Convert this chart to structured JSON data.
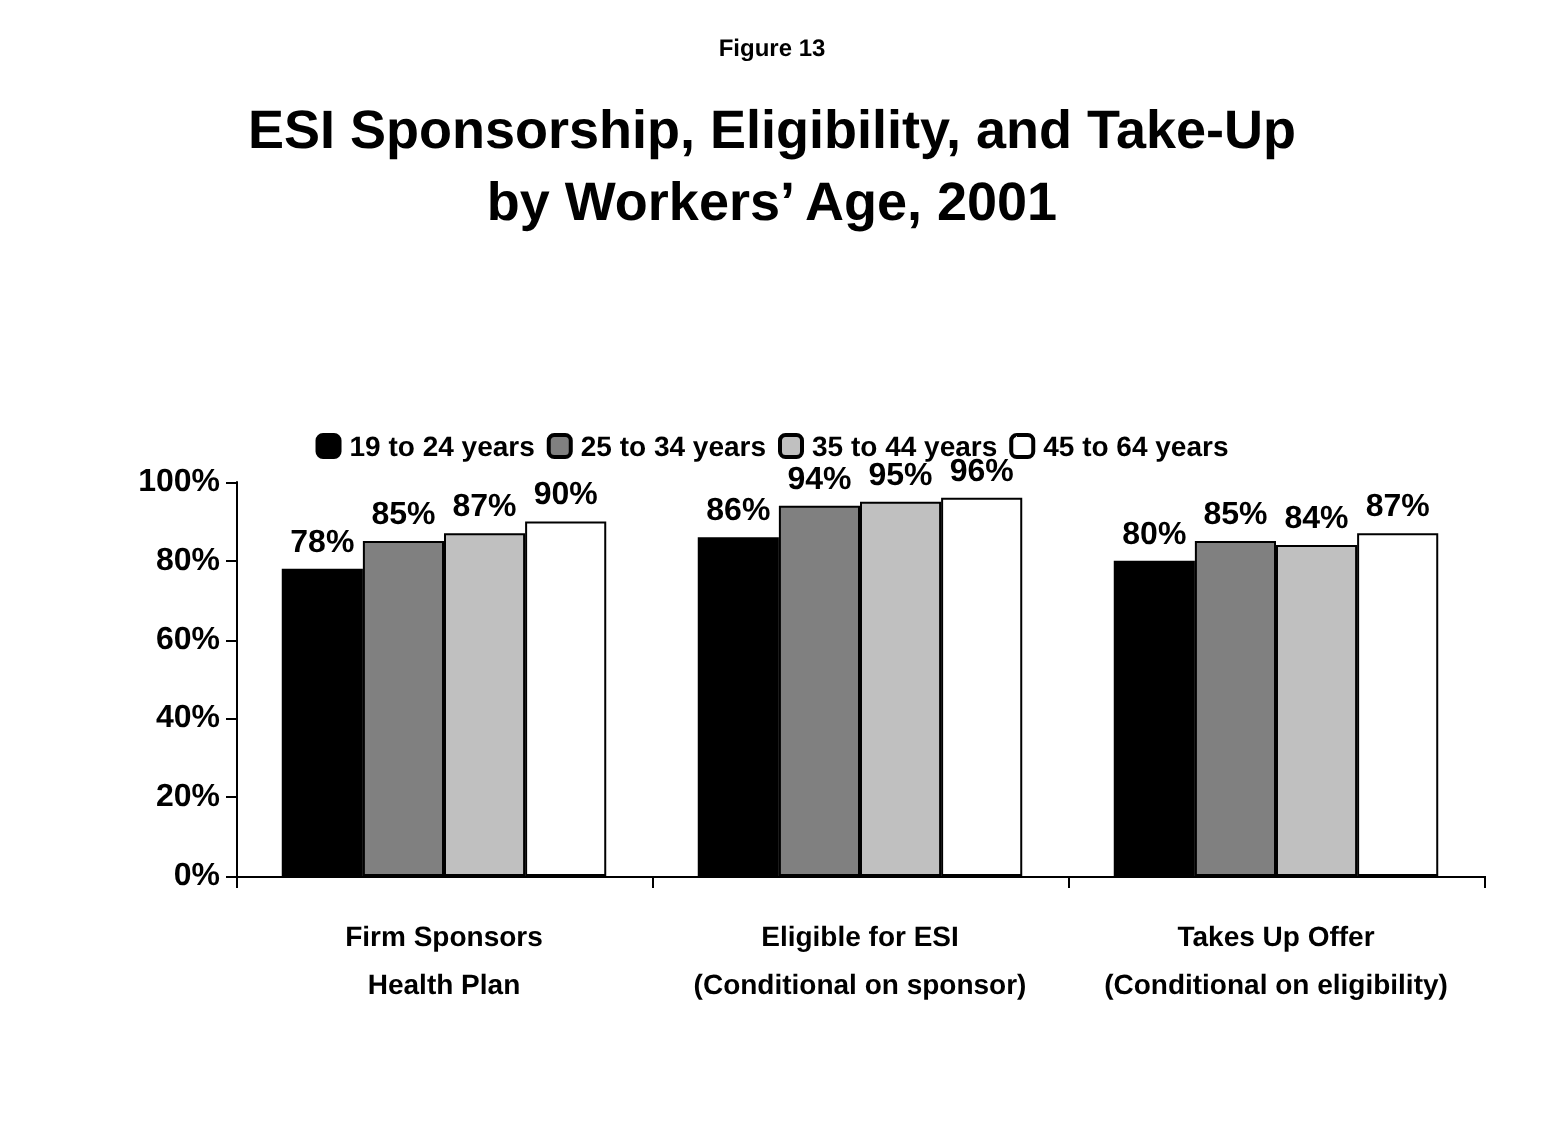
{
  "chart_data": {
    "type": "bar",
    "title": "ESI Sponsorship, Eligibility, and Take-Up\nby Workers’ Age, 2001",
    "annotations": [
      "Figure 13"
    ],
    "categories": [
      "Firm Sponsors\nHealth Plan",
      "Eligible for ESI\n(Conditional on sponsor)",
      "Takes Up Offer\n(Conditional on eligibility)"
    ],
    "series": [
      {
        "name": "19 to 24 years",
        "color": "#000000",
        "values": [
          78,
          86,
          80
        ],
        "value_labels": [
          "78%",
          "86%",
          "80%"
        ]
      },
      {
        "name": "25 to 34 years",
        "color": "#808080",
        "values": [
          85,
          94,
          85
        ],
        "value_labels": [
          "85%",
          "94%",
          "85%"
        ]
      },
      {
        "name": "35 to 44 years",
        "color": "#c0c0c0",
        "values": [
          87,
          95,
          84
        ],
        "value_labels": [
          "87%",
          "95%",
          "84%"
        ]
      },
      {
        "name": "45 to 64 years",
        "color": "#ffffff",
        "values": [
          90,
          96,
          87
        ],
        "value_labels": [
          "90%",
          "96%",
          "87%"
        ]
      }
    ],
    "ylim": [
      0,
      100
    ],
    "yticks": [
      {
        "value": 0,
        "label": "0%"
      },
      {
        "value": 20,
        "label": "20%"
      },
      {
        "value": 40,
        "label": "40%"
      },
      {
        "value": 60,
        "label": "60%"
      },
      {
        "value": 80,
        "label": "80%"
      },
      {
        "value": 100,
        "label": "100%"
      }
    ],
    "grid": false,
    "legend": "top"
  }
}
